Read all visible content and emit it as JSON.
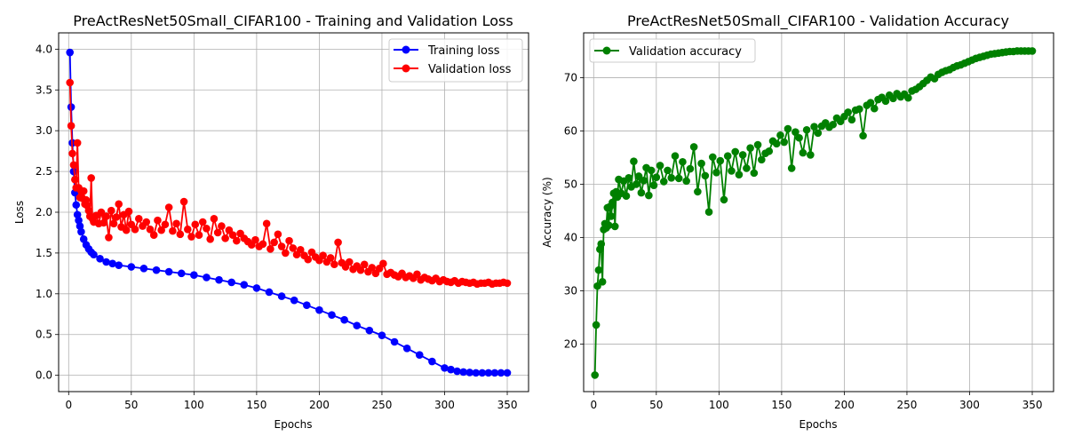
{
  "chart_data": [
    {
      "type": "line",
      "title": "PreActResNet50Small_CIFAR100 - Training and Validation Loss",
      "xlabel": "Epochs",
      "ylabel": "Loss",
      "xlim": [
        -8,
        367
      ],
      "ylim": [
        -0.2,
        4.2
      ],
      "xticks": [
        0,
        50,
        100,
        150,
        200,
        250,
        300,
        350
      ],
      "yticks": [
        0.0,
        0.5,
        1.0,
        1.5,
        2.0,
        2.5,
        3.0,
        3.5,
        4.0
      ],
      "ytick_labels": [
        "0.0",
        "0.5",
        "1.0",
        "1.5",
        "2.0",
        "2.5",
        "3.0",
        "3.5",
        "4.0"
      ],
      "grid": true,
      "legend_position": "upper right",
      "legend": [
        "Training loss",
        "Validation loss"
      ],
      "series": [
        {
          "name": "Training loss",
          "color": "#0000ff",
          "x": [
            1,
            2,
            3,
            4,
            5,
            6,
            7,
            8,
            9,
            10,
            12,
            14,
            16,
            18,
            20,
            25,
            30,
            35,
            40,
            50,
            60,
            70,
            80,
            90,
            100,
            110,
            120,
            130,
            140,
            150,
            160,
            170,
            180,
            190,
            200,
            210,
            220,
            230,
            240,
            250,
            260,
            270,
            280,
            290,
            300,
            305,
            310,
            315,
            320,
            325,
            330,
            335,
            340,
            345,
            350
          ],
          "y": [
            3.96,
            3.29,
            2.85,
            2.5,
            2.24,
            2.09,
            1.97,
            1.9,
            1.83,
            1.76,
            1.67,
            1.6,
            1.55,
            1.51,
            1.48,
            1.43,
            1.39,
            1.37,
            1.35,
            1.33,
            1.31,
            1.29,
            1.27,
            1.25,
            1.23,
            1.2,
            1.17,
            1.14,
            1.11,
            1.07,
            1.02,
            0.97,
            0.92,
            0.86,
            0.8,
            0.74,
            0.68,
            0.61,
            0.55,
            0.49,
            0.41,
            0.33,
            0.25,
            0.17,
            0.09,
            0.07,
            0.05,
            0.04,
            0.035,
            0.03,
            0.03,
            0.03,
            0.03,
            0.03,
            0.03
          ]
        },
        {
          "name": "Validation loss",
          "color": "#ff0000",
          "x": [
            1,
            2,
            3,
            4,
            5,
            6,
            7,
            8,
            9,
            10,
            11,
            12,
            13,
            14,
            15,
            16,
            17,
            18,
            19,
            20,
            22,
            24,
            26,
            28,
            30,
            32,
            34,
            36,
            38,
            40,
            42,
            44,
            46,
            48,
            50,
            53,
            56,
            59,
            62,
            65,
            68,
            71,
            74,
            77,
            80,
            83,
            86,
            89,
            92,
            95,
            98,
            101,
            104,
            107,
            110,
            113,
            116,
            119,
            122,
            125,
            128,
            131,
            134,
            137,
            140,
            143,
            146,
            149,
            152,
            155,
            158,
            161,
            164,
            167,
            170,
            173,
            176,
            179,
            182,
            185,
            188,
            191,
            194,
            197,
            200,
            203,
            206,
            209,
            212,
            215,
            218,
            221,
            224,
            227,
            230,
            233,
            236,
            239,
            242,
            245,
            248,
            251,
            254,
            257,
            260,
            263,
            266,
            269,
            272,
            275,
            278,
            281,
            284,
            287,
            290,
            293,
            296,
            299,
            302,
            305,
            308,
            311,
            314,
            317,
            320,
            323,
            326,
            329,
            332,
            335,
            338,
            341,
            344,
            347,
            350
          ],
          "y": [
            3.59,
            3.06,
            2.72,
            2.58,
            2.4,
            2.3,
            2.85,
            2.3,
            2.18,
            2.26,
            2.17,
            2.26,
            2.1,
            2.15,
            2.08,
            2.02,
            1.95,
            2.42,
            1.92,
            1.88,
            1.96,
            1.86,
            2.0,
            1.87,
            1.95,
            1.69,
            2.02,
            1.86,
            1.94,
            2.1,
            1.82,
            1.97,
            1.78,
            2.01,
            1.85,
            1.79,
            1.92,
            1.83,
            1.88,
            1.79,
            1.72,
            1.9,
            1.78,
            1.85,
            2.06,
            1.77,
            1.86,
            1.73,
            2.13,
            1.79,
            1.7,
            1.85,
            1.72,
            1.88,
            1.8,
            1.67,
            1.92,
            1.75,
            1.83,
            1.68,
            1.78,
            1.72,
            1.65,
            1.74,
            1.68,
            1.64,
            1.6,
            1.66,
            1.58,
            1.61,
            1.86,
            1.55,
            1.63,
            1.73,
            1.58,
            1.5,
            1.65,
            1.56,
            1.48,
            1.54,
            1.47,
            1.42,
            1.51,
            1.45,
            1.41,
            1.47,
            1.39,
            1.44,
            1.36,
            1.63,
            1.38,
            1.33,
            1.39,
            1.3,
            1.34,
            1.29,
            1.36,
            1.27,
            1.32,
            1.25,
            1.31,
            1.37,
            1.24,
            1.26,
            1.23,
            1.21,
            1.25,
            1.2,
            1.22,
            1.19,
            1.24,
            1.17,
            1.2,
            1.18,
            1.16,
            1.19,
            1.15,
            1.17,
            1.15,
            1.14,
            1.16,
            1.13,
            1.15,
            1.14,
            1.13,
            1.14,
            1.12,
            1.13,
            1.13,
            1.14,
            1.12,
            1.13,
            1.13,
            1.14,
            1.13
          ]
        }
      ]
    },
    {
      "type": "line",
      "title": "PreActResNet50Small_CIFAR100 - Validation Accuracy",
      "xlabel": "Epochs",
      "ylabel": "Accuracy (%)",
      "xlim": [
        -8,
        367
      ],
      "ylim": [
        11.1,
        78.4
      ],
      "xticks": [
        0,
        50,
        100,
        150,
        200,
        250,
        300,
        350
      ],
      "yticks": [
        20,
        30,
        40,
        50,
        60,
        70
      ],
      "ytick_labels": [
        "20",
        "30",
        "40",
        "50",
        "60",
        "70"
      ],
      "grid": true,
      "legend_position": "upper left",
      "legend": [
        "Validation accuracy"
      ],
      "series": [
        {
          "name": "Validation accuracy",
          "color": "#008000",
          "x": [
            1,
            2,
            3,
            4,
            5,
            6,
            7,
            8,
            9,
            10,
            11,
            12,
            13,
            14,
            15,
            16,
            17,
            18,
            19,
            20,
            22,
            24,
            26,
            28,
            30,
            32,
            34,
            36,
            38,
            40,
            42,
            44,
            46,
            48,
            50,
            53,
            56,
            59,
            62,
            65,
            68,
            71,
            74,
            77,
            80,
            83,
            86,
            89,
            92,
            95,
            98,
            101,
            104,
            107,
            110,
            113,
            116,
            119,
            122,
            125,
            128,
            131,
            134,
            137,
            140,
            143,
            146,
            149,
            152,
            155,
            158,
            161,
            164,
            167,
            170,
            173,
            176,
            179,
            182,
            185,
            188,
            191,
            194,
            197,
            200,
            203,
            206,
            209,
            212,
            215,
            218,
            221,
            224,
            227,
            230,
            233,
            236,
            239,
            242,
            245,
            248,
            251,
            254,
            257,
            260,
            263,
            266,
            269,
            272,
            275,
            278,
            281,
            284,
            287,
            290,
            293,
            296,
            299,
            302,
            305,
            308,
            311,
            314,
            317,
            320,
            323,
            326,
            329,
            332,
            335,
            338,
            341,
            344,
            347,
            350
          ],
          "y": [
            14.2,
            23.6,
            30.9,
            33.9,
            37.8,
            38.8,
            31.7,
            41.5,
            42.6,
            41.8,
            45.6,
            42.3,
            45.8,
            44.0,
            46.6,
            48.3,
            42.1,
            48.6,
            47.6,
            50.9,
            48.3,
            50.6,
            47.8,
            51.2,
            49.5,
            54.3,
            50.0,
            51.5,
            48.4,
            50.7,
            53.1,
            47.9,
            52.6,
            49.8,
            51.3,
            53.5,
            50.5,
            52.6,
            51.2,
            55.3,
            51.1,
            54.2,
            50.6,
            52.9,
            57.0,
            48.6,
            53.9,
            51.6,
            44.8,
            55.1,
            52.2,
            54.4,
            47.1,
            55.3,
            52.5,
            56.1,
            51.8,
            55.5,
            53.0,
            56.8,
            52.1,
            57.4,
            54.6,
            55.8,
            56.2,
            58.1,
            57.6,
            59.2,
            57.9,
            60.4,
            53.0,
            59.8,
            58.7,
            55.9,
            60.2,
            55.5,
            60.8,
            59.6,
            60.9,
            61.5,
            60.7,
            61.2,
            62.4,
            61.8,
            62.7,
            63.5,
            62.1,
            63.9,
            64.1,
            59.1,
            64.8,
            65.3,
            64.2,
            65.9,
            66.3,
            65.6,
            66.7,
            66.1,
            67.0,
            66.4,
            66.9,
            66.2,
            67.5,
            67.8,
            68.3,
            68.9,
            69.5,
            70.1,
            69.8,
            70.6,
            71.0,
            71.3,
            71.5,
            71.9,
            72.2,
            72.4,
            72.7,
            73.0,
            73.3,
            73.6,
            73.8,
            74.0,
            74.2,
            74.4,
            74.5,
            74.6,
            74.7,
            74.8,
            74.9,
            74.9,
            75.0,
            75.0,
            75.0,
            75.0,
            75.0
          ]
        }
      ]
    }
  ]
}
